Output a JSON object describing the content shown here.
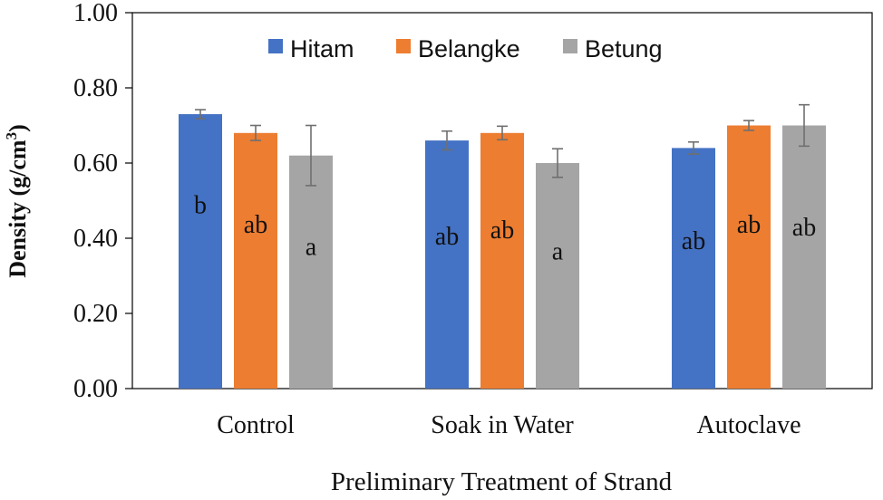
{
  "chart_data": {
    "type": "bar",
    "title": "",
    "xlabel": "Preliminary Treatment of Strand",
    "ylabel": "Density (g/cm",
    "ylabel_superscript": "3",
    "ylabel_suffix": ")",
    "ylim": [
      0,
      1.0
    ],
    "yticks": [
      "0.00",
      "0.20",
      "0.40",
      "0.60",
      "0.80",
      "1.00"
    ],
    "categories": [
      "Control",
      "Soak in Water",
      "Autoclave"
    ],
    "legend_position": "top-center",
    "series": [
      {
        "name": "Hitam",
        "color": "#4472C4",
        "values": [
          0.73,
          0.66,
          0.64
        ],
        "errors": [
          0.012,
          0.025,
          0.016
        ],
        "labels": [
          "b",
          "ab",
          "ab"
        ]
      },
      {
        "name": "Belangke",
        "color": "#ED7D31",
        "values": [
          0.68,
          0.68,
          0.7
        ],
        "errors": [
          0.02,
          0.018,
          0.013
        ],
        "labels": [
          "ab",
          "ab",
          "ab"
        ]
      },
      {
        "name": "Betung",
        "color": "#A5A5A5",
        "values": [
          0.62,
          0.6,
          0.7
        ],
        "errors": [
          0.08,
          0.038,
          0.055
        ],
        "labels": [
          "a",
          "a",
          "ab"
        ]
      }
    ]
  }
}
